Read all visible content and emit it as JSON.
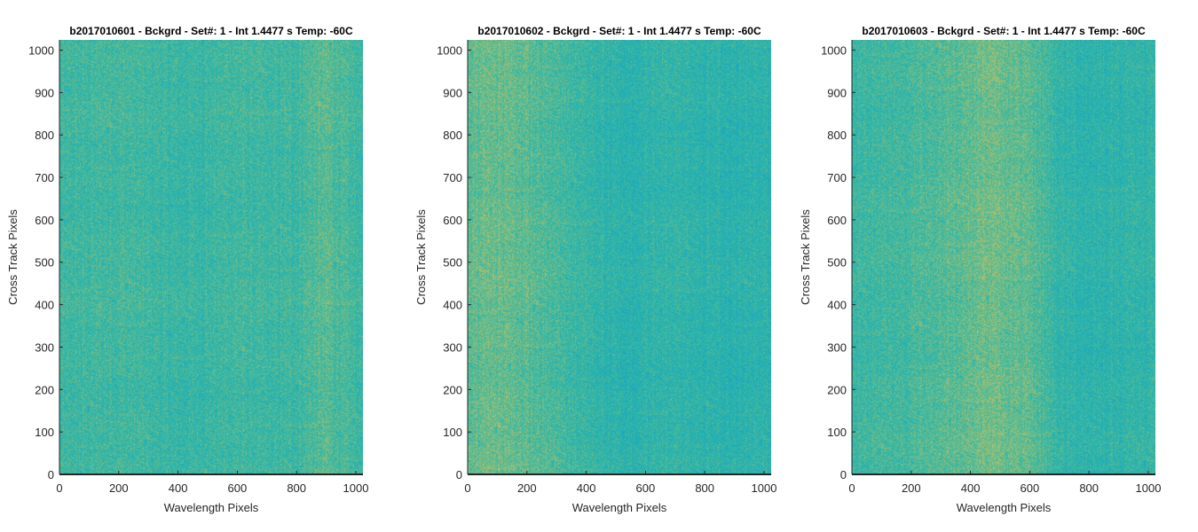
{
  "chart_data": [
    {
      "type": "heatmap",
      "title": "b2017010601 - Bckgrd - Set#: 1 - Int 1.4477 s Temp: -60C",
      "xlabel": "Wavelength Pixels",
      "ylabel": "Cross Track Pixels",
      "xlim": [
        0,
        1024
      ],
      "ylim": [
        0,
        1024
      ],
      "xticks": [
        0,
        200,
        400,
        600,
        800,
        1000
      ],
      "yticks": [
        0,
        100,
        200,
        300,
        400,
        500,
        600,
        700,
        800,
        900,
        1000
      ],
      "column_profile": {
        "x": [
          0,
          100,
          200,
          300,
          400,
          500,
          600,
          700,
          800,
          850,
          900,
          950,
          1024
        ],
        "level": [
          0.5,
          0.52,
          0.54,
          0.51,
          0.48,
          0.5,
          0.53,
          0.5,
          0.52,
          0.58,
          0.62,
          0.56,
          0.5
        ]
      }
    },
    {
      "type": "heatmap",
      "title": "b2017010602 - Bckgrd - Set#: 1 - Int 1.4477 s Temp: -60C",
      "xlabel": "Wavelength Pixels",
      "ylabel": "Cross Track Pixels",
      "xlim": [
        0,
        1024
      ],
      "ylim": [
        0,
        1024
      ],
      "xticks": [
        0,
        200,
        400,
        600,
        800,
        1000
      ],
      "yticks": [
        0,
        100,
        200,
        300,
        400,
        500,
        600,
        700,
        800,
        900,
        1000
      ],
      "column_profile": {
        "x": [
          0,
          60,
          150,
          250,
          350,
          450,
          520,
          600,
          700,
          800,
          900,
          1024
        ],
        "level": [
          0.62,
          0.68,
          0.66,
          0.58,
          0.52,
          0.44,
          0.4,
          0.43,
          0.46,
          0.42,
          0.4,
          0.42
        ]
      }
    },
    {
      "type": "heatmap",
      "title": "b2017010603 - Bckgrd - Set#: 1 - Int 1.4477 s Temp: -60C",
      "xlabel": "Wavelength Pixels",
      "ylabel": "Cross Track Pixels",
      "xlim": [
        0,
        1024
      ],
      "ylim": [
        0,
        1024
      ],
      "xticks": [
        0,
        200,
        400,
        600,
        800,
        1000
      ],
      "yticks": [
        0,
        100,
        200,
        300,
        400,
        500,
        600,
        700,
        800,
        900,
        1000
      ],
      "column_profile": {
        "x": [
          0,
          100,
          200,
          300,
          400,
          450,
          500,
          600,
          650,
          700,
          800,
          900,
          1024
        ],
        "level": [
          0.5,
          0.52,
          0.55,
          0.6,
          0.66,
          0.7,
          0.68,
          0.62,
          0.55,
          0.45,
          0.42,
          0.44,
          0.46
        ]
      }
    }
  ],
  "colors": {
    "colormap_low": "#0f9ad0",
    "colormap_mid": "#2fb8a6",
    "colormap_high": "#d8c25a",
    "axis": "#262626",
    "text": "#262626",
    "title": "#000000"
  }
}
